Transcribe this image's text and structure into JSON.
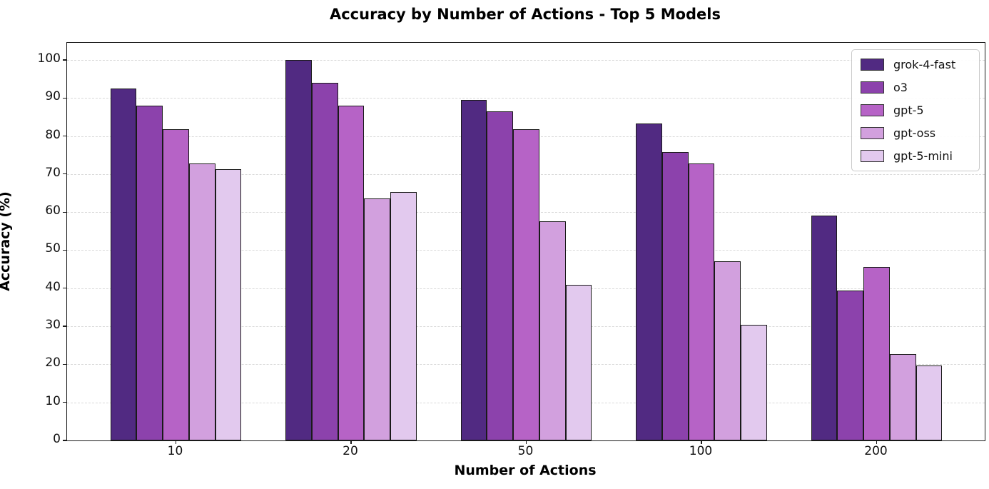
{
  "figure_title": "Accuracy by Number of Actions - Top 5 Models",
  "chart_data": {
    "type": "bar",
    "title": "Accuracy by Number of Actions - Top 5 Models",
    "xlabel": "Number of Actions",
    "ylabel": "Accuracy (%)",
    "categories": [
      "10",
      "20",
      "50",
      "100",
      "200"
    ],
    "series": [
      {
        "name": "grok-4-fast",
        "color": "#512a82",
        "values": [
          92.4,
          100.0,
          89.4,
          83.3,
          59.1
        ]
      },
      {
        "name": "o3",
        "color": "#8c42ac",
        "values": [
          87.9,
          93.9,
          86.4,
          75.8,
          39.4
        ]
      },
      {
        "name": "gpt-5",
        "color": "#b663c6",
        "values": [
          81.8,
          87.9,
          81.8,
          72.7,
          45.5
        ]
      },
      {
        "name": "gpt-oss",
        "color": "#d2a0de",
        "values": [
          72.7,
          63.6,
          57.6,
          47.0,
          22.7
        ]
      },
      {
        "name": "gpt-5-mini",
        "color": "#e2c9ee",
        "values": [
          71.2,
          65.2,
          40.9,
          30.3,
          19.7
        ]
      }
    ],
    "y_ticks": [
      0,
      10,
      20,
      30,
      40,
      50,
      60,
      70,
      80,
      90,
      100
    ],
    "ylim": [
      0,
      104.5
    ],
    "grid": "horizontal-dashed",
    "gridline_color": "#d9d9d9",
    "bar_edge_color": "#1a1a1a",
    "legend_position": "upper-right",
    "legend_labels": [
      "grok-4-fast",
      "o3",
      "gpt-5",
      "gpt-oss",
      "gpt-5-mini"
    ]
  }
}
